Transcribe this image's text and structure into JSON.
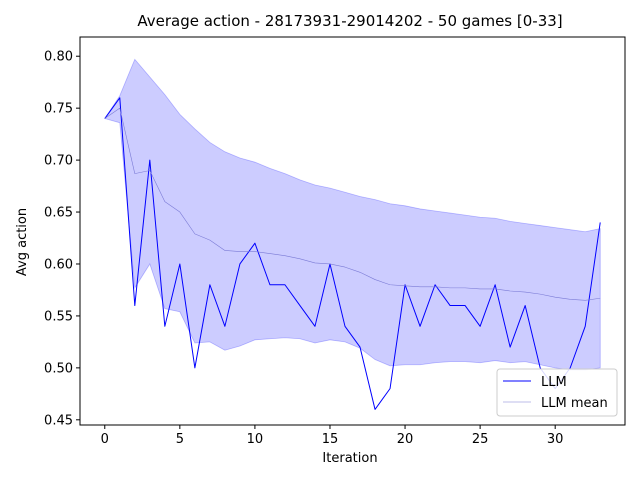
{
  "chart_data": {
    "type": "line",
    "title": "Average action - 28173931-29014202 - 50 games [0-33]",
    "xlabel": "Iteration",
    "ylabel": "Avg action",
    "xlim": [
      -1.65,
      34.65
    ],
    "ylim": [
      0.445,
      0.8185
    ],
    "xticks": [
      0,
      5,
      10,
      15,
      20,
      25,
      30
    ],
    "yticks": [
      0.45,
      0.5,
      0.55,
      0.6,
      0.65,
      0.7,
      0.75,
      0.8
    ],
    "ytick_labels": [
      "0.45",
      "0.50",
      "0.55",
      "0.60",
      "0.65",
      "0.70",
      "0.75",
      "0.80"
    ],
    "legend_position": "lower-right",
    "x": [
      0,
      1,
      2,
      3,
      4,
      5,
      6,
      7,
      8,
      9,
      10,
      11,
      12,
      13,
      14,
      15,
      16,
      17,
      18,
      19,
      20,
      21,
      22,
      23,
      24,
      25,
      26,
      27,
      28,
      29,
      30,
      31,
      32,
      33
    ],
    "series": [
      {
        "name": "LLM",
        "color": "#0000ff",
        "values": [
          0.74,
          0.76,
          0.56,
          0.7,
          0.54,
          0.6,
          0.5,
          0.58,
          0.54,
          0.6,
          0.62,
          0.58,
          0.58,
          0.56,
          0.54,
          0.6,
          0.54,
          0.52,
          0.46,
          0.48,
          0.58,
          0.54,
          0.58,
          0.56,
          0.56,
          0.54,
          0.58,
          0.52,
          0.56,
          0.5,
          0.48,
          0.5,
          0.54,
          0.64
        ]
      },
      {
        "name": "LLM mean",
        "color": "#7b7bd6",
        "values": [
          0.74,
          0.75,
          0.687,
          0.69,
          0.66,
          0.65,
          0.629,
          0.623,
          0.613,
          0.612,
          0.612,
          0.61,
          0.608,
          0.605,
          0.601,
          0.6,
          0.597,
          0.592,
          0.585,
          0.58,
          0.579,
          0.578,
          0.578,
          0.577,
          0.577,
          0.576,
          0.576,
          0.574,
          0.573,
          0.571,
          0.568,
          0.566,
          0.565,
          0.567
        ]
      }
    ],
    "band": {
      "color": "#0000ff",
      "upper": [
        0.74,
        0.762,
        0.797,
        0.78,
        0.763,
        0.744,
        0.73,
        0.717,
        0.708,
        0.702,
        0.698,
        0.692,
        0.687,
        0.681,
        0.676,
        0.673,
        0.669,
        0.665,
        0.662,
        0.658,
        0.656,
        0.653,
        0.651,
        0.649,
        0.647,
        0.645,
        0.644,
        0.641,
        0.639,
        0.637,
        0.635,
        0.633,
        0.631,
        0.634
      ],
      "lower": [
        0.74,
        0.736,
        0.577,
        0.6,
        0.557,
        0.554,
        0.524,
        0.525,
        0.517,
        0.521,
        0.527,
        0.528,
        0.529,
        0.528,
        0.524,
        0.527,
        0.525,
        0.519,
        0.508,
        0.502,
        0.503,
        0.503,
        0.505,
        0.506,
        0.506,
        0.505,
        0.507,
        0.505,
        0.506,
        0.503,
        0.5,
        0.498,
        0.498,
        0.5
      ]
    }
  }
}
